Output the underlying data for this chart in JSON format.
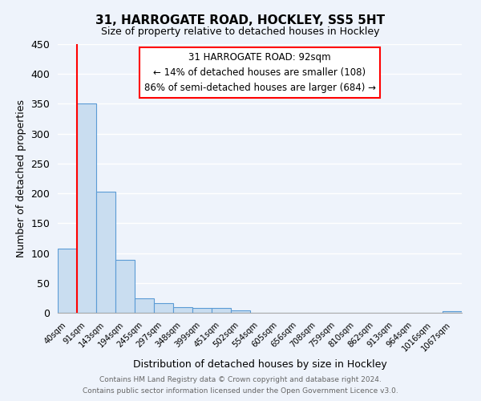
{
  "title": "31, HARROGATE ROAD, HOCKLEY, SS5 5HT",
  "subtitle": "Size of property relative to detached houses in Hockley",
  "xlabel": "Distribution of detached houses by size in Hockley",
  "ylabel": "Number of detached properties",
  "bar_labels": [
    "40sqm",
    "91sqm",
    "143sqm",
    "194sqm",
    "245sqm",
    "297sqm",
    "348sqm",
    "399sqm",
    "451sqm",
    "502sqm",
    "554sqm",
    "605sqm",
    "656sqm",
    "708sqm",
    "759sqm",
    "810sqm",
    "862sqm",
    "913sqm",
    "964sqm",
    "1016sqm",
    "1067sqm"
  ],
  "bar_values": [
    108,
    350,
    203,
    88,
    24,
    16,
    10,
    8,
    8,
    4,
    0,
    0,
    0,
    0,
    0,
    0,
    0,
    0,
    0,
    0,
    3
  ],
  "bar_color": "#c9ddf0",
  "bar_edge_color": "#5b9bd5",
  "ylim": [
    0,
    450
  ],
  "yticks": [
    0,
    50,
    100,
    150,
    200,
    250,
    300,
    350,
    400,
    450
  ],
  "red_line_x": 1,
  "annotation_title": "31 HARROGATE ROAD: 92sqm",
  "annotation_line1": "← 14% of detached houses are smaller (108)",
  "annotation_line2": "86% of semi-detached houses are larger (684) →",
  "footer_line1": "Contains HM Land Registry data © Crown copyright and database right 2024.",
  "footer_line2": "Contains public sector information licensed under the Open Government Licence v3.0.",
  "background_color": "#eef3fb",
  "plot_background": "#eef3fb",
  "grid_color": "#ffffff"
}
